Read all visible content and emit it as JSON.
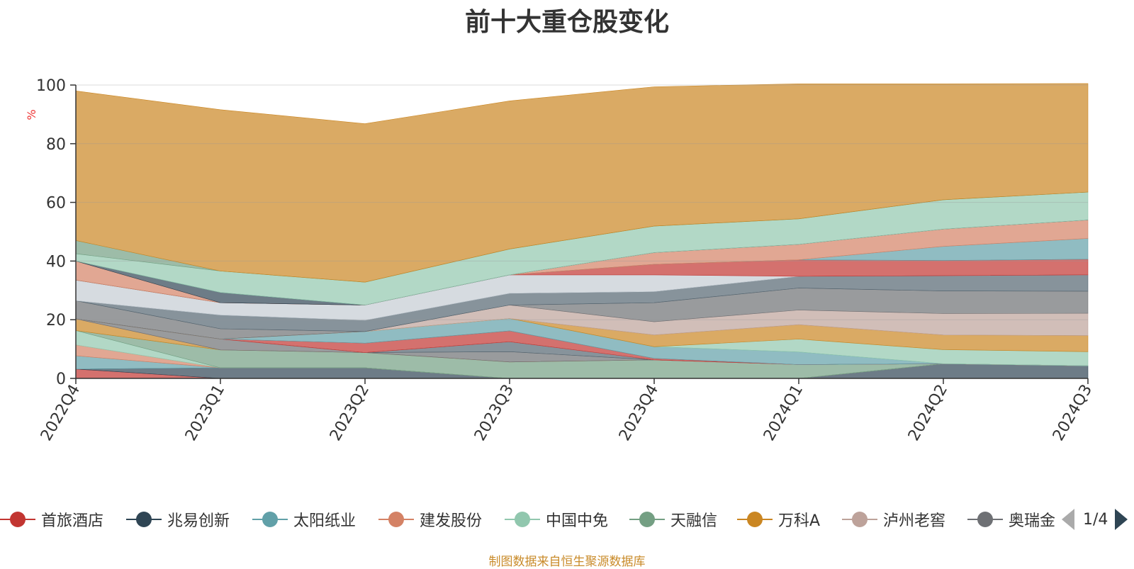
{
  "chart_data": {
    "type": "area",
    "title": "前十大重仓股变化",
    "ylabel": "%",
    "ylim": [
      0,
      100
    ],
    "yticks": [
      0,
      20,
      40,
      60,
      80,
      100
    ],
    "categories": [
      "2022Q4",
      "2023Q1",
      "2023Q2",
      "2023Q3",
      "2023Q4",
      "2024Q1",
      "2024Q2",
      "2024Q3"
    ],
    "grid": true,
    "legend_position": "bottom",
    "legend_page": "1/4",
    "series": [
      {
        "name": "首旅酒店",
        "color": "#c23531",
        "values": [
          3.2,
          0,
          0,
          0,
          0,
          0,
          0,
          0
        ]
      },
      {
        "name": "兆易创新",
        "color": "#2f4554",
        "values": [
          0,
          3.6,
          3.6,
          0,
          0,
          0,
          5.0,
          4.3
        ]
      },
      {
        "name": "太阳纸业",
        "color": "#61a0a8",
        "values": [
          4.5,
          0,
          0,
          0,
          0,
          0,
          0,
          0
        ]
      },
      {
        "name": "建发股份",
        "color": "#d48265",
        "values": [
          3.7,
          0,
          0,
          0,
          0,
          0,
          0,
          0
        ]
      },
      {
        "name": "中国中免",
        "color": "#91c7ae",
        "values": [
          4.9,
          0,
          0,
          0,
          0,
          0,
          0,
          0
        ]
      },
      {
        "name": "天融信",
        "color": "#749f83",
        "values": [
          0,
          6.1,
          5.2,
          5.6,
          6.3,
          4.7,
          0,
          0
        ]
      },
      {
        "name": "万科A",
        "color": "#ca8622",
        "values": [
          4.0,
          0,
          0,
          0,
          0,
          0,
          0,
          0
        ]
      },
      {
        "name": "泸州老窖",
        "color": "#bda29a",
        "values": [
          0,
          0,
          0,
          0,
          0,
          0,
          0,
          0
        ]
      },
      {
        "name": "奥瑞金",
        "color": "#6e7074",
        "values": [
          0,
          3.7,
          0,
          3.5,
          0,
          0,
          0,
          0
        ]
      },
      {
        "name": "",
        "color": "#546570",
        "values": [
          0,
          0,
          0,
          3.4,
          0,
          0,
          0,
          0
        ]
      },
      {
        "name": "",
        "color": "#c4ccd3",
        "values": [
          0,
          0,
          0,
          0,
          0,
          0,
          0,
          0
        ]
      },
      {
        "name": "",
        "color": "#c23531",
        "values": [
          0,
          0,
          3.2,
          3.7,
          0.5,
          0,
          0,
          0
        ]
      },
      {
        "name": "",
        "color": "#61a0a8",
        "values": [
          0,
          0,
          4.0,
          4.2,
          4.0,
          4.3,
          0,
          0
        ]
      },
      {
        "name": "",
        "color": "#91c7ae",
        "values": [
          0,
          0,
          0,
          0,
          0,
          4.4,
          4.8,
          4.8
        ]
      },
      {
        "name": "",
        "color": "#ca8622",
        "values": [
          0,
          0,
          0,
          0,
          4.0,
          4.9,
          5.0,
          5.5
        ]
      },
      {
        "name": "",
        "color": "#bda29a",
        "values": [
          0,
          0,
          0,
          4.6,
          4.5,
          5.0,
          7.3,
          7.6
        ]
      },
      {
        "name": "",
        "color": "#6e7074",
        "values": [
          6.2,
          3.5,
          0,
          0,
          6.5,
          7.5,
          7.7,
          7.5
        ]
      },
      {
        "name": "",
        "color": "#546570",
        "values": [
          0,
          4.7,
          3.8,
          4.0,
          3.8,
          4.0,
          5.2,
          5.6
        ]
      },
      {
        "name": "",
        "color": "#c4ccd3",
        "values": [
          7.0,
          4.2,
          5.2,
          6.3,
          5.7,
          0,
          0,
          0
        ]
      },
      {
        "name": "",
        "color": "#c23531",
        "values": [
          0,
          0,
          0,
          0,
          3.6,
          5.6,
          5.2,
          5.3
        ]
      },
      {
        "name": "",
        "color": "#61a0a8",
        "values": [
          0,
          0,
          0,
          0,
          0,
          0,
          4.8,
          7.1
        ]
      },
      {
        "name": "",
        "color": "#d48265",
        "values": [
          6.5,
          0,
          0,
          0,
          4.0,
          5.3,
          5.9,
          6.3
        ]
      },
      {
        "name": "",
        "color": "#2f4554",
        "values": [
          0,
          3.5,
          0,
          0,
          0,
          0,
          0,
          0
        ]
      },
      {
        "name": "",
        "color": "#91c7ae",
        "values": [
          2.5,
          7.3,
          7.8,
          8.8,
          9.0,
          8.7,
          10.0,
          9.5
        ]
      },
      {
        "name": "",
        "color": "#749f83",
        "values": [
          4.5,
          0,
          0,
          0,
          0,
          0,
          0,
          0
        ]
      },
      {
        "name": "",
        "color": "#ca8622",
        "values": [
          51.0,
          55.0,
          54.0,
          50.5,
          47.5,
          46.0,
          39.5,
          37.0
        ]
      }
    ]
  },
  "source_note": "制图数据来自恒生聚源数据库"
}
